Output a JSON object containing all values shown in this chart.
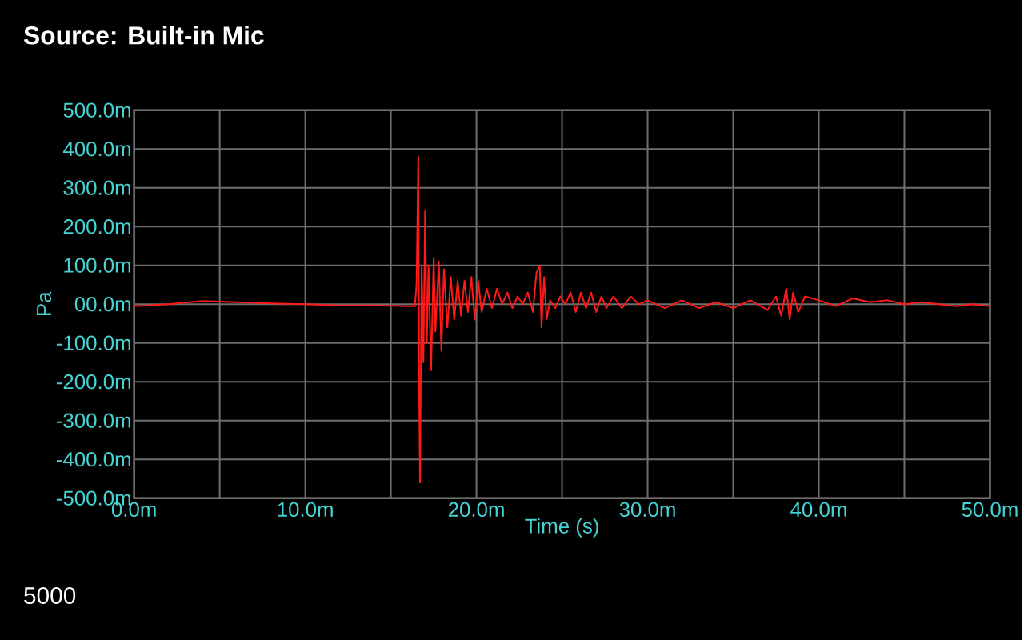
{
  "chart_data": {
    "type": "line",
    "title": "Source:  Built-in Mic",
    "xlabel": "Time (s)",
    "ylabel": "Pa",
    "annotations": [
      "5000"
    ],
    "xlim": [
      0,
      50
    ],
    "ylim": [
      -500,
      500
    ],
    "xticks": [
      {
        "value": 0,
        "label": "0.0m"
      },
      {
        "value": 10,
        "label": "10.0m"
      },
      {
        "value": 20,
        "label": "20.0m"
      },
      {
        "value": 30,
        "label": "30.0m"
      },
      {
        "value": 40,
        "label": "40.0m"
      },
      {
        "value": 50,
        "label": "50.0m"
      }
    ],
    "yticks": [
      {
        "value": 500,
        "label": "500.0m"
      },
      {
        "value": 400,
        "label": "400.0m"
      },
      {
        "value": 300,
        "label": "300.0m"
      },
      {
        "value": 200,
        "label": "200.0m"
      },
      {
        "value": 100,
        "label": "100.0m"
      },
      {
        "value": 0,
        "label": "00.0m"
      },
      {
        "value": -100,
        "label": "-100.0m"
      },
      {
        "value": -200,
        "label": "-200.0m"
      },
      {
        "value": -300,
        "label": "-300.0m"
      },
      {
        "value": -400,
        "label": "-400.0m"
      },
      {
        "value": -500,
        "label": "-500.0m"
      }
    ],
    "grid": true,
    "marker": "none",
    "line_style": "solid",
    "series": [
      {
        "color": "#ff1a1a",
        "x": [
          0,
          2,
          4,
          6,
          8,
          10,
          12,
          14,
          16,
          16.4,
          16.5,
          16.6,
          16.65,
          16.7,
          16.8,
          16.9,
          17.0,
          17.1,
          17.2,
          17.35,
          17.5,
          17.6,
          17.8,
          17.95,
          18.1,
          18.3,
          18.5,
          18.7,
          18.9,
          19.1,
          19.3,
          19.5,
          19.7,
          19.9,
          20.1,
          20.3,
          20.6,
          20.9,
          21.2,
          21.5,
          21.8,
          22.1,
          22.4,
          22.7,
          23.0,
          23.3,
          23.5,
          23.7,
          23.8,
          23.95,
          24.1,
          24.3,
          24.6,
          24.9,
          25.2,
          25.5,
          25.8,
          26.1,
          26.4,
          26.7,
          27.0,
          27.3,
          27.6,
          28,
          28.5,
          29,
          29.5,
          30,
          31,
          32,
          33,
          34,
          35,
          36,
          37,
          37.5,
          37.8,
          38.1,
          38.3,
          38.5,
          38.8,
          39.2,
          40,
          41,
          42,
          43,
          44,
          45,
          46,
          47,
          48,
          49,
          50
        ],
        "values": [
          -5,
          0,
          8,
          5,
          2,
          0,
          -3,
          -3,
          -5,
          -5,
          50,
          380,
          -200,
          -460,
          100,
          -150,
          240,
          -100,
          100,
          -170,
          120,
          -70,
          110,
          -120,
          90,
          -60,
          70,
          -40,
          60,
          -30,
          60,
          -20,
          70,
          -40,
          60,
          -20,
          40,
          -10,
          40,
          0,
          30,
          -10,
          20,
          0,
          30,
          -20,
          80,
          100,
          -60,
          70,
          -40,
          10,
          -10,
          20,
          0,
          30,
          -20,
          30,
          -10,
          30,
          -20,
          20,
          -10,
          20,
          -10,
          20,
          0,
          10,
          -10,
          10,
          -10,
          5,
          -10,
          10,
          -15,
          20,
          -30,
          40,
          -40,
          30,
          -20,
          20,
          10,
          -5,
          15,
          5,
          10,
          0,
          5,
          0,
          -5,
          0,
          -5
        ]
      }
    ]
  }
}
